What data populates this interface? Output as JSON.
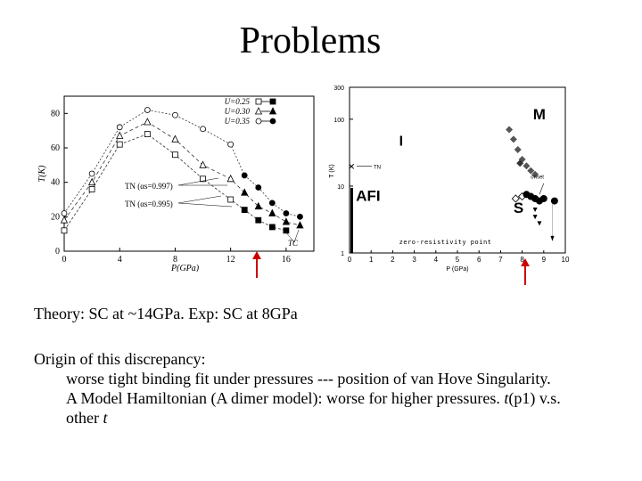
{
  "slide": {
    "title": "Problems",
    "line1": "Theory: SC at ~14GPa. Exp: SC at 8GPa",
    "origin_heading": "Origin of this discrepancy:",
    "origin_line1": "worse tight binding fit under pressures --- position of van Hove Singularity.",
    "origin_line2a": "A Model Hamiltonian (A dimer model): worse for higher pressures. ",
    "origin_line2_t": "t",
    "origin_line2b": "(p1) v.s.",
    "origin_line3a": "other ",
    "origin_line3_t": "t"
  },
  "colors": {
    "arrow": "#cc0000",
    "ink": "#000000",
    "gray": "#555555",
    "afi_bar": "#000000"
  },
  "chart_data": [
    {
      "type": "line",
      "xlabel": "P(GPa)",
      "ylabel": "T(K)",
      "xlim": [
        0,
        18
      ],
      "ylim": [
        0,
        90
      ],
      "xticks": [
        0,
        4,
        8,
        12,
        16
      ],
      "yticks": [
        0,
        20,
        40,
        60,
        80
      ],
      "legend": [
        "U=0.25",
        "U=0.30",
        "U=0.35"
      ],
      "annotations": {
        "tn1": "TN (αs=0.997)",
        "tn2": "TN (αs=0.995)",
        "tc": "TC"
      },
      "series": [
        {
          "name": "U=0.25",
          "marker": "square",
          "x": [
            0,
            2,
            4,
            6,
            8,
            10,
            12,
            13,
            14,
            15,
            16
          ],
          "y": [
            12,
            36,
            62,
            68,
            56,
            42,
            30,
            24,
            18,
            14,
            12
          ]
        },
        {
          "name": "U=0.30",
          "marker": "triangle",
          "x": [
            0,
            2,
            4,
            6,
            8,
            10,
            12,
            13,
            14,
            15,
            16,
            17
          ],
          "y": [
            18,
            40,
            67,
            75,
            65,
            50,
            42,
            34,
            26,
            22,
            17,
            15
          ]
        },
        {
          "name": "U=0.35",
          "marker": "circle",
          "x": [
            0,
            2,
            4,
            6,
            8,
            10,
            12,
            13,
            14,
            15,
            16,
            17
          ],
          "y": [
            22,
            45,
            72,
            82,
            79,
            71,
            62,
            44,
            37,
            28,
            22,
            20
          ]
        }
      ]
    },
    {
      "type": "scatter",
      "xlabel": "P (GPa)",
      "ylabel": "T (K)",
      "xlim": [
        0,
        10
      ],
      "ylim": [
        1,
        300
      ],
      "yscale": "log",
      "xticks": [
        0,
        1,
        2,
        3,
        4,
        5,
        6,
        7,
        8,
        9,
        10
      ],
      "yticks": [
        1,
        10,
        100,
        300
      ],
      "regions": [
        "I",
        "M",
        "AFI",
        "S"
      ],
      "labels": {
        "tn": "TN",
        "onset": "onset",
        "zero": "zero-resistivity point"
      },
      "metal_points": {
        "x": [
          7.4,
          7.6,
          7.8,
          8.0,
          8.2,
          8.4,
          8.6
        ],
        "y": [
          70,
          50,
          35,
          25,
          20,
          17,
          15
        ]
      },
      "sc_points": {
        "x": [
          7.7,
          8.0,
          8.2,
          8.4,
          8.6,
          8.8,
          9.0,
          9.5
        ],
        "y": [
          6.5,
          7.0,
          7.5,
          7.0,
          6.5,
          6.0,
          6.5,
          6.0
        ]
      }
    }
  ]
}
